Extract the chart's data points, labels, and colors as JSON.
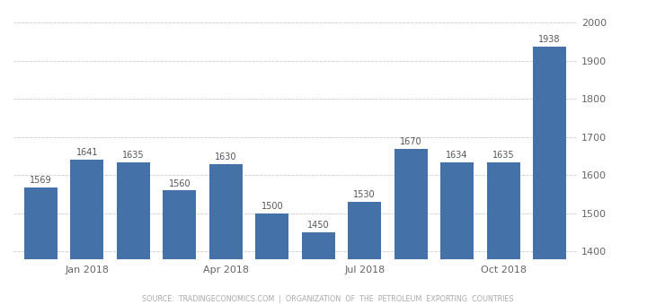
{
  "bar_values": [
    1569,
    1641,
    1635,
    1560,
    1630,
    1500,
    1450,
    1530,
    1670,
    1634,
    1635,
    1938
  ],
  "bar_labels": [
    "1569",
    "1641",
    "1635",
    "1560",
    "1630",
    "1500",
    "1450",
    "1530",
    "1670",
    "1634",
    "1635",
    "1938"
  ],
  "x_tick_positions": [
    1,
    4,
    7,
    10
  ],
  "x_tick_labels": [
    "Jan 2018",
    "Apr 2018",
    "Jul 2018",
    "Oct 2018"
  ],
  "bar_color": "#4472a8",
  "background_color": "#ffffff",
  "ylim": [
    1380,
    2020
  ],
  "yticks": [
    1400,
    1500,
    1600,
    1700,
    1800,
    1900,
    2000
  ],
  "grid_color": "#cccccc",
  "source_text": "SOURCE:  TRADINGECONOMICS.COM  |  ORGANIZATION  OF  THE  PETROLEUM  EXPORTING  COUNTRIES",
  "label_fontsize": 7,
  "tick_fontsize": 8,
  "source_fontsize": 5.8
}
